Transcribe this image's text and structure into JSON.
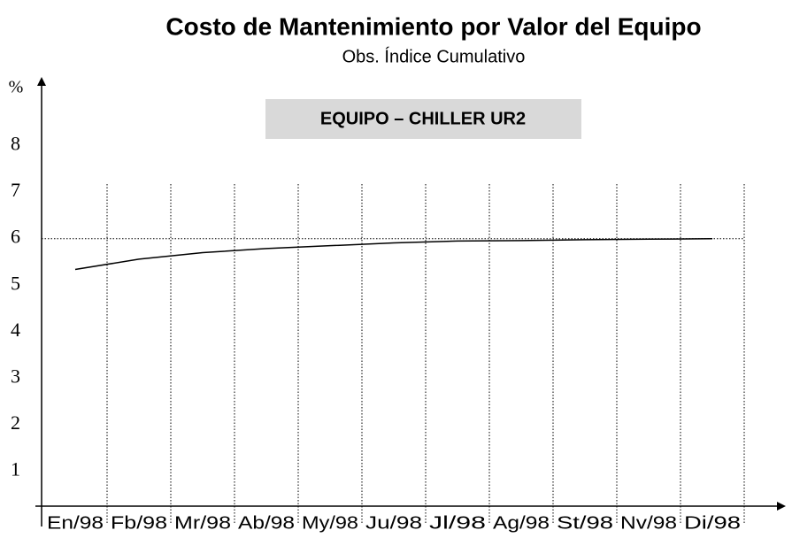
{
  "chart_data": {
    "type": "line",
    "title": "Costo de Mantenimiento por Valor del Equipo",
    "subtitle": "Obs. Índice Cumulativo",
    "y_label": "%",
    "annotation": "EQUIPO – CHILLER UR2",
    "categories": [
      "En/98",
      "Fb/98",
      "Mr/98",
      "Ab/98",
      "My/98",
      "Ju/98",
      "Jl/98",
      "Ag/98",
      "St/98",
      "Nv/98",
      "Di/98"
    ],
    "values": [
      5.49,
      5.71,
      5.85,
      5.94,
      6.0,
      6.06,
      6.1,
      6.11,
      6.13,
      6.14,
      6.15
    ],
    "color": "#000000",
    "reference_line": 6.15,
    "ylim": [
      0,
      9
    ],
    "yticks": [
      1,
      2,
      3,
      4,
      5,
      6,
      7,
      8
    ],
    "grid": true
  }
}
